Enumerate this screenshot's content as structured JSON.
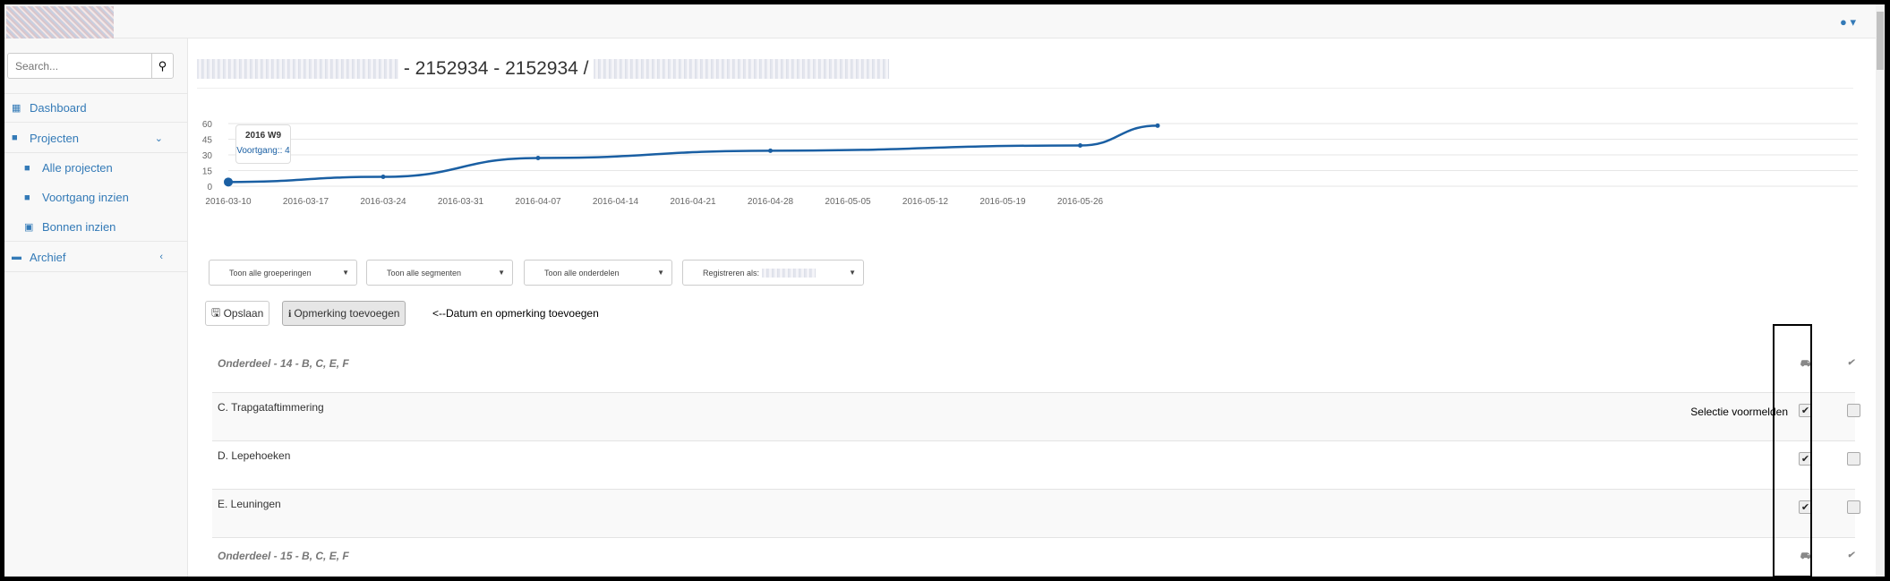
{
  "header": {
    "user_icon": "user-icon",
    "caret": "▾"
  },
  "sidebar": {
    "search_placeholder": "Search...",
    "items": [
      {
        "label": "Dashboard",
        "icon": "calendar-icon"
      },
      {
        "label": "Projecten",
        "icon": "briefcase-icon"
      },
      {
        "label": "Alle projecten",
        "icon": "briefcase-icon"
      },
      {
        "label": "Voortgang inzien",
        "icon": "briefcase-icon"
      },
      {
        "label": "Bonnen inzien",
        "icon": "money-icon"
      },
      {
        "label": "Archief",
        "icon": "archive-icon"
      }
    ]
  },
  "page": {
    "title": "- 2152934 - 2152934 /"
  },
  "chart_data": {
    "type": "line",
    "x": [
      "2016-03-10",
      "2016-03-24",
      "2016-04-07",
      "2016-04-28",
      "2016-05-26",
      "2016-06-02"
    ],
    "y": [
      4,
      9,
      27,
      34,
      39,
      58
    ],
    "xticks": [
      "2016-03-10",
      "2016-03-17",
      "2016-03-24",
      "2016-03-31",
      "2016-04-07",
      "2016-04-14",
      "2016-04-21",
      "2016-04-28",
      "2016-05-05",
      "2016-05-12",
      "2016-05-19",
      "2016-05-26"
    ],
    "yticks": [
      0,
      15,
      30,
      45,
      60
    ],
    "ylim": [
      0,
      60
    ],
    "grid": true,
    "color": "#1a5fa3",
    "tooltip": {
      "title": "2016 W9",
      "text": "Voortgang:: 4"
    }
  },
  "filters": [
    {
      "label": "Toon alle groeperingen"
    },
    {
      "label": "Toon alle segmenten"
    },
    {
      "label": "Toon alle onderdelen"
    },
    {
      "label": "Registreren als:"
    }
  ],
  "buttons": {
    "save": "Opslaan",
    "comment": "Opmerking toevoegen"
  },
  "annotation": "<--Datum en opmerking toevoegen",
  "selection_note": "Selectie voormelden",
  "rows": [
    {
      "type": "group",
      "label": "Onderdeel - 14 - B, C, E, F"
    },
    {
      "type": "item",
      "label": "C. Trapgataftimmering",
      "col1": true,
      "col2": false
    },
    {
      "type": "item",
      "label": "D. Lepehoeken",
      "col1": true,
      "col2": false
    },
    {
      "type": "item",
      "label": "E. Leuningen",
      "col1": true,
      "col2": false
    },
    {
      "type": "group",
      "label": "Onderdeel - 15 - B, C, E, F"
    }
  ]
}
